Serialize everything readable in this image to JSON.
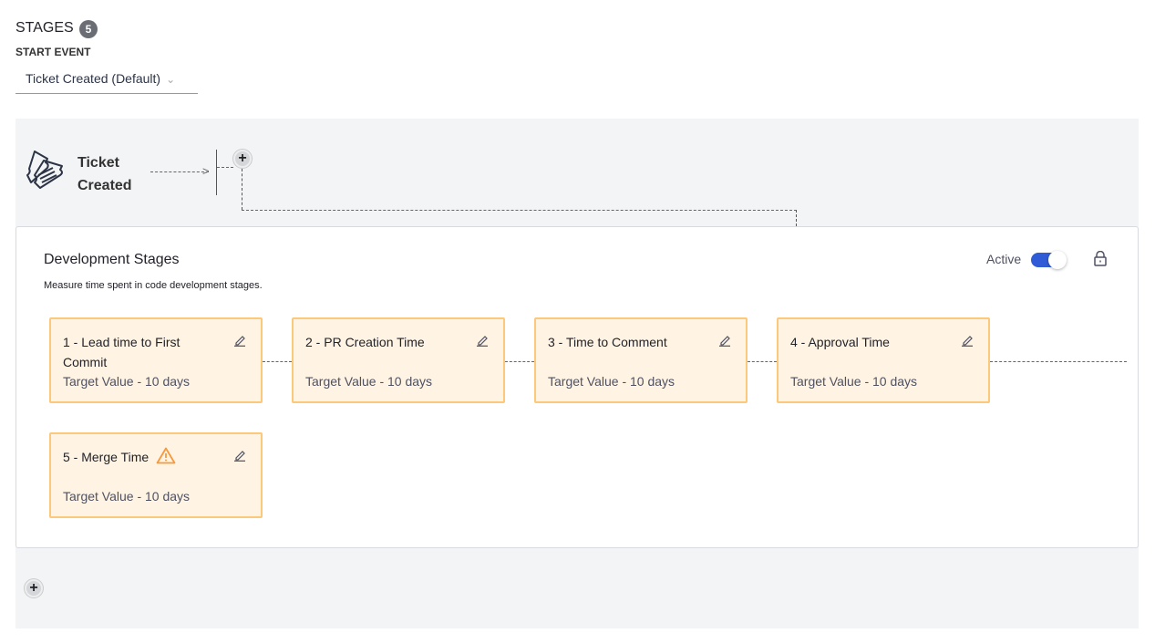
{
  "header": {
    "title": "STAGES",
    "stage_count": "5",
    "start_event_label": "START EVENT",
    "start_event_value": "Ticket Created (Default)"
  },
  "flow": {
    "start_node": "Ticket Created"
  },
  "panel": {
    "title": "Development Stages",
    "description": "Measure time spent in code development stages.",
    "status_label": "Active",
    "active": true
  },
  "stages": [
    {
      "name": "1 - Lead time to First Commit",
      "target": "Target Value - 10 days",
      "warning": false
    },
    {
      "name": "2 - PR Creation Time",
      "target": "Target Value - 10 days",
      "warning": false
    },
    {
      "name": "3 - Time to Comment",
      "target": "Target Value - 10 days",
      "warning": false
    },
    {
      "name": "4 - Approval Time",
      "target": "Target Value - 10 days",
      "warning": false
    },
    {
      "name": "5 - Merge Time",
      "target": "Target Value - 10 days",
      "warning": true
    }
  ],
  "colors": {
    "accent": "#2f5cd6",
    "card_bg": "#fff4e3",
    "card_border": "#fcc87a",
    "warning": "#f7993a"
  }
}
